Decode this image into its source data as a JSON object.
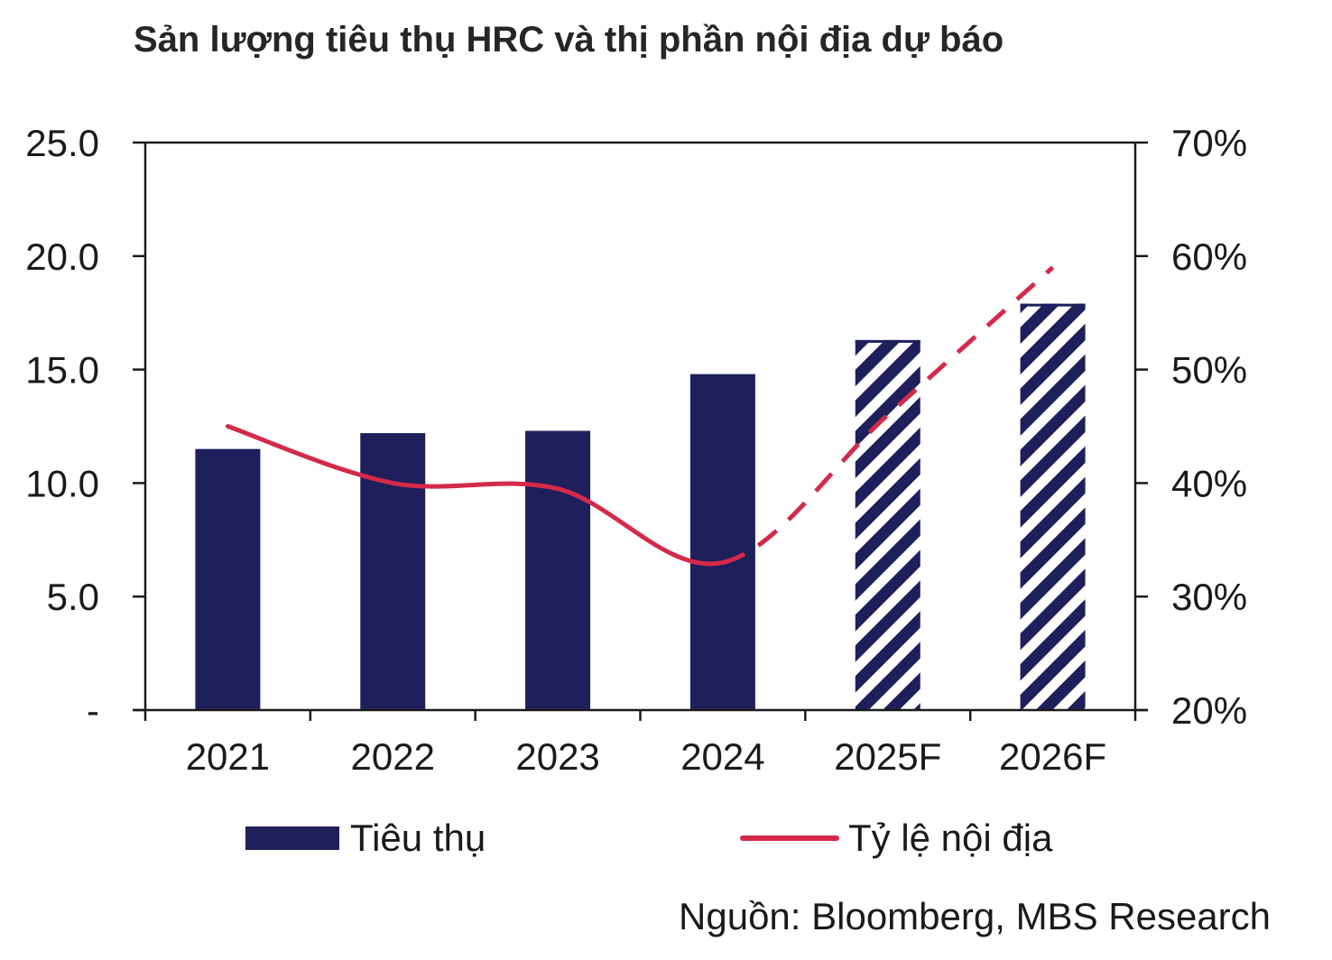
{
  "title": "Sản lượng tiêu thụ HRC và thị phần nội địa dự báo",
  "source": "Nguồn: Bloomberg, MBS Research",
  "legend": {
    "bar_label": "Tiêu thụ",
    "line_label": "Tỷ lệ nội địa"
  },
  "colors": {
    "bar": "#1f1f5c",
    "line": "#d42a4a",
    "axis": "#1a1a1a"
  },
  "chart_data": {
    "type": "bar",
    "title": "Sản lượng tiêu thụ HRC và thị phần nội địa dự báo",
    "categories": [
      "2021",
      "2022",
      "2023",
      "2024",
      "2025F",
      "2026F"
    ],
    "forecast_categories": [
      "2025F",
      "2026F"
    ],
    "y_left": {
      "ticks": [
        "-",
        "5.0",
        "10.0",
        "15.0",
        "20.0",
        "25.0"
      ],
      "tick_values": [
        0,
        5,
        10,
        15,
        20,
        25
      ],
      "range": [
        0,
        25
      ]
    },
    "y_right": {
      "ticks": [
        "20%",
        "30%",
        "40%",
        "50%",
        "60%",
        "70%"
      ],
      "tick_values": [
        20,
        30,
        40,
        50,
        60,
        70
      ],
      "range": [
        20,
        70
      ]
    },
    "series": [
      {
        "name": "Tiêu thụ",
        "type": "bar",
        "axis": "left",
        "values": [
          11.5,
          12.2,
          12.3,
          14.8,
          16.3,
          17.9
        ],
        "hatched_from_index": 4
      },
      {
        "name": "Tỷ lệ nội địa",
        "type": "line",
        "axis": "right",
        "values": [
          45,
          40,
          39.5,
          33,
          46,
          59
        ],
        "dashed_from_index": 3
      }
    ],
    "grid": false,
    "legend_position": "bottom"
  }
}
